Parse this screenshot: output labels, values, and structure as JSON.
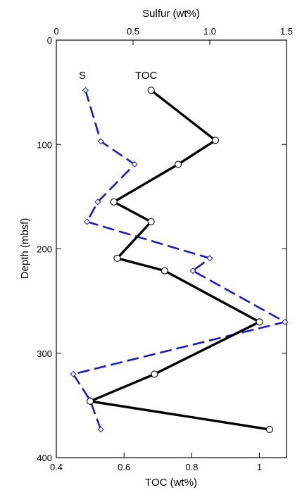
{
  "chart_data": {
    "type": "line",
    "top_axis": {
      "label": "Sulfur (wt%)",
      "ticks": [
        0,
        0.5,
        1.0,
        1.5
      ],
      "tick_labels": [
        "0",
        "0.5",
        "1.0",
        "1.5"
      ],
      "range": [
        0,
        1.5
      ]
    },
    "bottom_axis": {
      "label": "TOC (wt%)",
      "ticks": [
        0.4,
        0.6,
        0.8,
        1.0
      ],
      "tick_labels": [
        "0.4",
        "0.6",
        "0.8",
        "1"
      ],
      "range": [
        0.4,
        1.08
      ]
    },
    "y_axis": {
      "label": "Depth (mbsf)",
      "ticks": [
        0,
        100,
        200,
        300,
        400
      ],
      "tick_labels": [
        "0",
        "100",
        "200",
        "300",
        "400"
      ],
      "range": [
        0,
        400
      ],
      "inverted": true
    },
    "grid": false,
    "series": [
      {
        "name": "TOC",
        "axis": "bottom",
        "color": "#000000",
        "line_style": "solid",
        "marker": "circle",
        "points": [
          {
            "depth": 48,
            "value": 0.68
          },
          {
            "depth": 96,
            "value": 0.87
          },
          {
            "depth": 119,
            "value": 0.76
          },
          {
            "depth": 155,
            "value": 0.57
          },
          {
            "depth": 174,
            "value": 0.68
          },
          {
            "depth": 209,
            "value": 0.58
          },
          {
            "depth": 221,
            "value": 0.72
          },
          {
            "depth": 270,
            "value": 1.0
          },
          {
            "depth": 320,
            "value": 0.69
          },
          {
            "depth": 346,
            "value": 0.5
          },
          {
            "depth": 373,
            "value": 1.03
          }
        ]
      },
      {
        "name": "S",
        "axis": "top",
        "color": "#1a1acc",
        "line_style": "dashed",
        "marker": "diamond",
        "points": [
          {
            "depth": 48,
            "value": 0.19
          },
          {
            "depth": 97,
            "value": 0.29
          },
          {
            "depth": 119,
            "value": 0.51
          },
          {
            "depth": 155,
            "value": 0.27
          },
          {
            "depth": 174,
            "value": 0.2
          },
          {
            "depth": 209,
            "value": 1.0
          },
          {
            "depth": 221,
            "value": 0.89
          },
          {
            "depth": 270,
            "value": 1.49
          },
          {
            "depth": 320,
            "value": 0.11
          },
          {
            "depth": 345,
            "value": 0.22
          },
          {
            "depth": 373,
            "value": 0.29
          }
        ]
      }
    ]
  }
}
